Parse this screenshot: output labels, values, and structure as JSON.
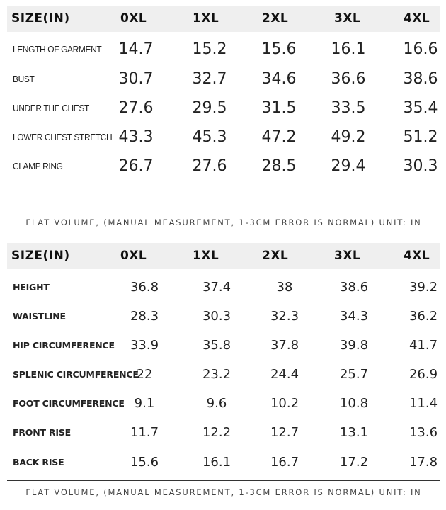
{
  "table1": {
    "header": {
      "label": "SIZE(IN)",
      "sizes": [
        "0XL",
        "1XL",
        "2XL",
        "3XL",
        "4XL"
      ]
    },
    "rows": [
      {
        "label": "LENGTH OF GARMENT",
        "values": [
          "14.7",
          "15.2",
          "15.6",
          "16.1",
          "16.6"
        ]
      },
      {
        "label": "BUST",
        "values": [
          "30.7",
          "32.7",
          "34.6",
          "36.6",
          "38.6"
        ]
      },
      {
        "label": "UNDER THE CHEST",
        "values": [
          "27.6",
          "29.5",
          "31.5",
          "33.5",
          "35.4"
        ]
      },
      {
        "label": "LOWER CHEST STRETCH",
        "values": [
          "43.3",
          "45.3",
          "47.2",
          "49.2",
          "51.2"
        ]
      },
      {
        "label": "CLAMP RING",
        "values": [
          "26.7",
          "27.6",
          "28.5",
          "29.4",
          "30.3"
        ]
      }
    ],
    "note": "FLAT VOLUME, (MANUAL MEASUREMENT, 1-3CM ERROR IS NORMAL) UNIT: IN"
  },
  "table2": {
    "header": {
      "label": "SIZE(IN)",
      "sizes": [
        "0XL",
        "1XL",
        "2XL",
        "3XL",
        "4XL"
      ]
    },
    "rows": [
      {
        "label": "HEIGHT",
        "values": [
          "36.8",
          "37.4",
          "38",
          "38.6",
          "39.2"
        ]
      },
      {
        "label": "WAISTLINE",
        "values": [
          "28.3",
          "30.3",
          "32.3",
          "34.3",
          "36.2"
        ]
      },
      {
        "label": "HIP CIRCUMFERENCE",
        "values": [
          "33.9",
          "35.8",
          "37.8",
          "39.8",
          "41.7"
        ]
      },
      {
        "label": "SPLENIC CIRCUMFERENCE",
        "values": [
          "22",
          "23.2",
          "24.4",
          "25.7",
          "26.9"
        ]
      },
      {
        "label": "FOOT CIRCUMFERENCE",
        "values": [
          "9.1",
          "9.6",
          "10.2",
          "10.8",
          "11.4"
        ]
      },
      {
        "label": "FRONT RISE",
        "values": [
          "11.7",
          "12.2",
          "12.7",
          "13.1",
          "13.6"
        ]
      },
      {
        "label": "BACK RISE",
        "values": [
          "15.6",
          "16.1",
          "16.7",
          "17.2",
          "17.8"
        ]
      }
    ],
    "note": "FLAT VOLUME, (MANUAL MEASUREMENT, 1-3CM ERROR IS NORMAL) UNIT: IN"
  },
  "colors": {
    "header_bg": "#efefef",
    "text": "#111111",
    "note_text": "#444444",
    "divider": "#333333"
  }
}
